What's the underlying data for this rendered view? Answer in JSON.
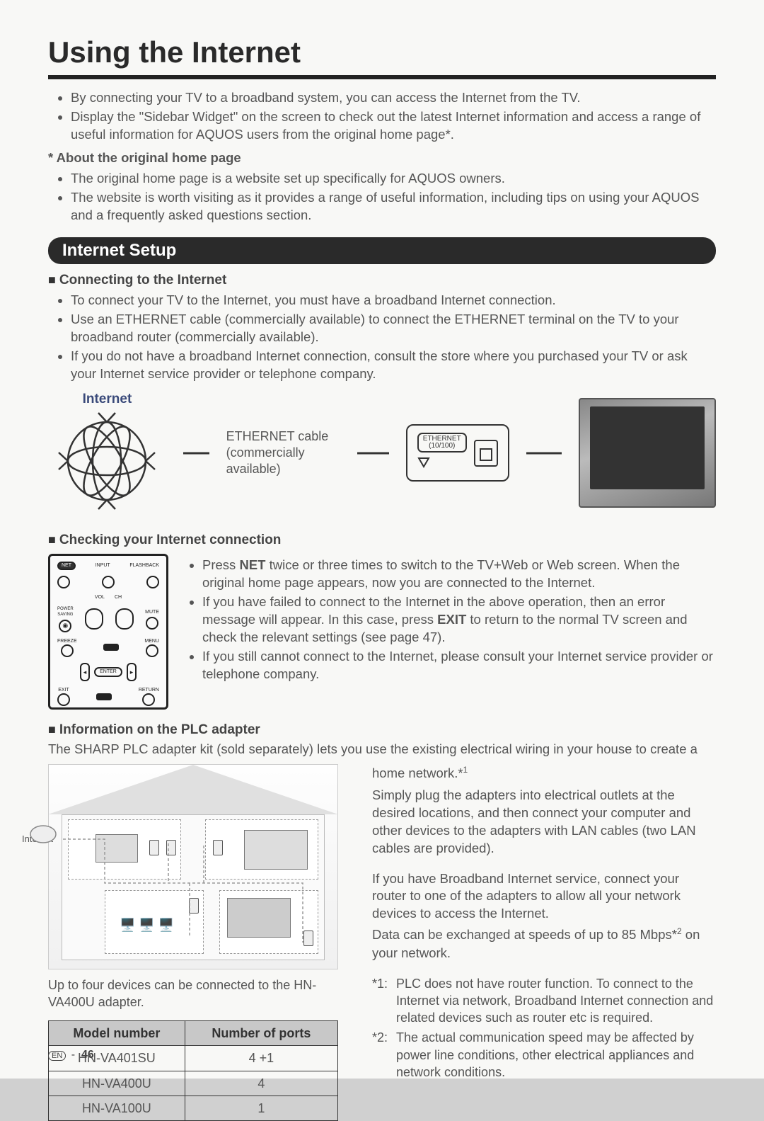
{
  "title": "Using the Internet",
  "intro_bullets": [
    "By connecting your TV to a broadband system, you can access the Internet from the TV.",
    "Display the \"Sidebar Widget\" on the screen to check out the latest Internet information and access a range of useful information for AQUOS users from the original home page*."
  ],
  "about": {
    "heading": "* About the original home page",
    "bullets": [
      "The original home page is a website set up specifically for AQUOS owners.",
      "The website is worth visiting as it provides a range of useful information, including tips on using your AQUOS and a frequently asked questions section."
    ]
  },
  "setup_bar": "Internet Setup",
  "connecting": {
    "heading": "Connecting to the Internet",
    "bullets": [
      "To connect your TV to the Internet, you must have a broadband Internet connection.",
      "Use an ETHERNET cable (commercially available) to connect the ETHERNET terminal on the TV to your broadband router (commercially available).",
      "If you do not have a broadband Internet connection, consult the store where you purchased your TV or ask your Internet service provider or telephone company."
    ]
  },
  "diagram": {
    "internet_label": "Internet",
    "cable_line1": "ETHERNET cable",
    "cable_line2": "(commercially available)",
    "port_label_top": "ETHERNET",
    "port_label_bottom": "(10/100)"
  },
  "checking": {
    "heading": "Checking your Internet connection",
    "bullets_html": [
      "Press <b>NET</b> twice or three times to switch to the TV+Web or Web screen. When the original home page appears, now you are connected to the Internet.",
      "If you have failed to connect to the Internet in the above operation, then an error message will appear. In this case, press <b>EXIT</b> to return to the normal TV screen and check the relevant settings (see page 47).",
      "If you still cannot connect to the Internet, please consult your Internet service provider or telephone company."
    ]
  },
  "remote_labels": {
    "net": "NET",
    "input": "INPUT",
    "flashback": "FLASHBACK",
    "vol": "VOL",
    "ch": "CH",
    "power_saving": "POWER\nSAVING",
    "mute": "MUTE",
    "freeze": "FREEZE",
    "menu": "MENU",
    "enter": "ENTER",
    "exit": "EXIT",
    "return": "RETURN"
  },
  "plc": {
    "heading": "Information on the PLC adapter",
    "intro": "The SHARP PLC adapter kit (sold separately) lets you use the existing electrical wiring in your house to create a",
    "house_internet": "Internet",
    "caption": "Up to four devices can be connected to the HN-VA400U adapter.",
    "table": {
      "columns": [
        "Model number",
        "Number of ports"
      ],
      "rows": [
        [
          "HN-VA401SU",
          "4 +1"
        ],
        [
          "HN-VA400U",
          "4"
        ],
        [
          "HN-VA100U",
          "1"
        ]
      ]
    },
    "right": {
      "para1_line1": "home network.*",
      "para1_sup": "1",
      "para2": "Simply plug the adapters into electrical outlets at the desired locations, and then connect your computer and other devices to the adapters with LAN cables (two LAN cables are provided).",
      "para3": "If you have Broadband Internet service, connect your router to one of the adapters to allow all your network devices to access the Internet.",
      "para4_a": "Data can be exchanged at speeds of up to 85 Mbps*",
      "para4_sup": "2",
      "para4_b": " on your network.",
      "footnotes": [
        {
          "marker": "*1:",
          "text": "PLC does not have router function. To connect to the Internet via network, Broadband Internet connection and related devices such as router etc is required."
        },
        {
          "marker": "*2:",
          "text": "The actual communication speed may be affected by power line conditions, other electrical appliances and network conditions."
        }
      ]
    }
  },
  "page_number": "46",
  "page_lang": "EN",
  "colors": {
    "rule": "#222222",
    "pill_bg": "#2a2a2a",
    "heading_blue": "#3a4a7a",
    "table_header_bg": "#c8c8c8"
  }
}
